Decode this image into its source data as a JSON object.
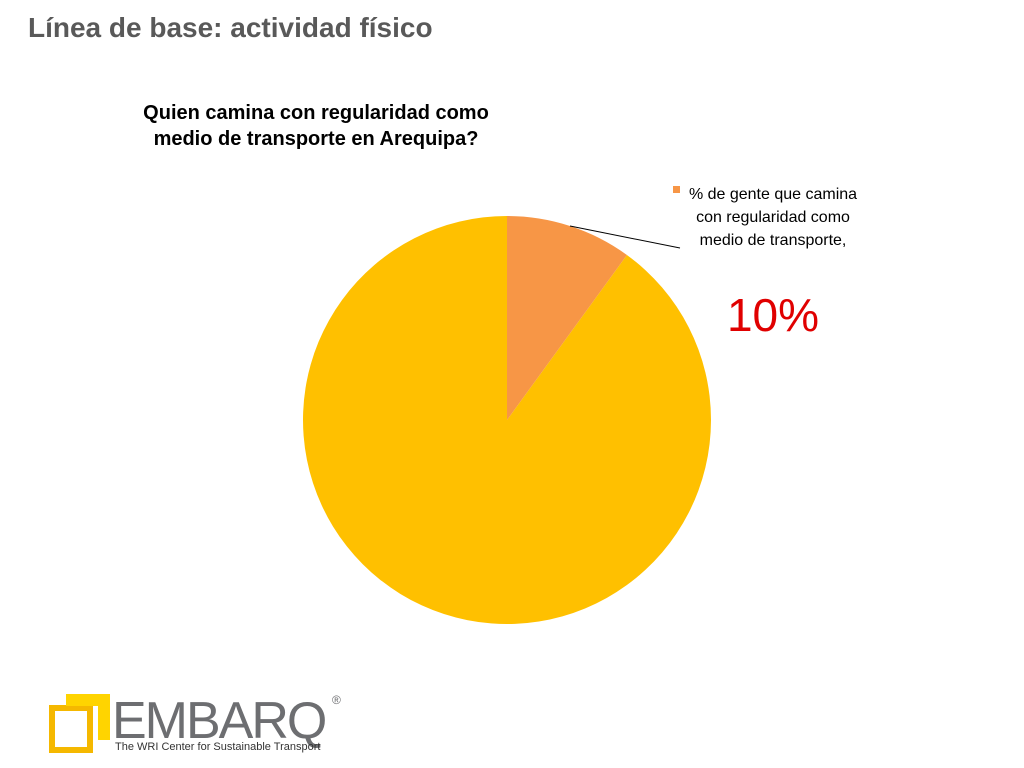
{
  "slide": {
    "title": "Línea de base: actividad físico"
  },
  "chart_data": {
    "type": "pie",
    "title": "Quien camina con regularidad como medio de transporte en Arequipa?",
    "categories": [
      "% de gente que camina con regularidad como medio de transporte,",
      null
    ],
    "values": [
      10,
      90
    ],
    "value_labels": [
      "10%",
      null
    ],
    "colors": [
      "#f79646",
      "#ffc000"
    ],
    "label_color": "#e00000"
  },
  "logo": {
    "name": "EMBARQ",
    "mark": "®",
    "tagline": "The WRI Center for Sustainable Transport"
  }
}
